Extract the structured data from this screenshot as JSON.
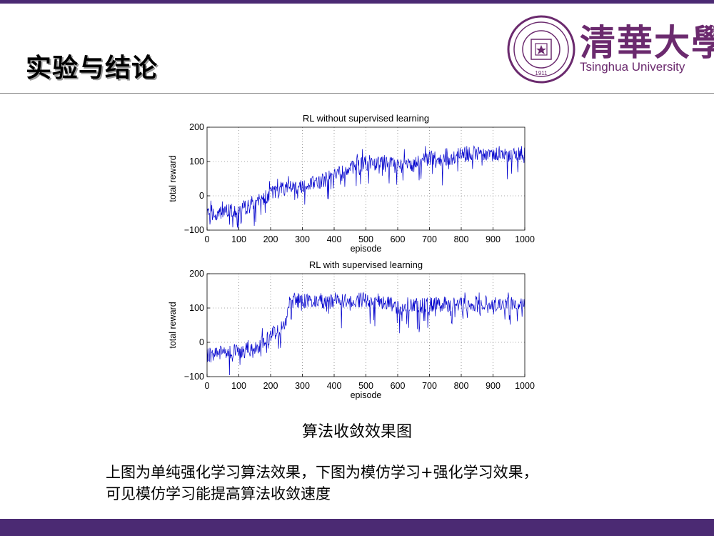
{
  "slide": {
    "title": "实验与结论",
    "accent_color": "#4b2a73",
    "caption": "算法收敛效果图",
    "body_lines": [
      "上图为单纯强化学习算法效果，下图为模仿学习+强化学习效果，",
      "可见模仿学习能提高算法收敛速度"
    ]
  },
  "logo": {
    "name_cn": "清華大學",
    "name_en": "Tsinghua University",
    "seal_year": "1911",
    "color": "#6b2a6e"
  },
  "chart_data": [
    {
      "type": "line",
      "title": "RL without supervised learning",
      "xlabel": "episode",
      "ylabel": "total reward",
      "xlim": [
        0,
        1000
      ],
      "ylim": [
        -100,
        200
      ],
      "xticks": [
        0,
        100,
        200,
        300,
        400,
        500,
        600,
        700,
        800,
        900,
        1000
      ],
      "yticks": [
        -100,
        0,
        100,
        200
      ],
      "grid": true,
      "line_color": "#0000cc",
      "trend": {
        "x": [
          0,
          50,
          100,
          150,
          200,
          250,
          300,
          350,
          400,
          450,
          500,
          550,
          600,
          650,
          700,
          750,
          800,
          850,
          900,
          950,
          1000
        ],
        "y": [
          -60,
          -45,
          -40,
          -25,
          5,
          25,
          30,
          40,
          60,
          80,
          95,
          100,
          85,
          90,
          110,
          105,
          120,
          122,
          122,
          120,
          118
        ]
      }
    },
    {
      "type": "line",
      "title": "RL with supervised learning",
      "xlabel": "episode",
      "ylabel": "total reward",
      "xlim": [
        0,
        1000
      ],
      "ylim": [
        -100,
        200
      ],
      "xticks": [
        0,
        100,
        200,
        300,
        400,
        500,
        600,
        700,
        800,
        900,
        1000
      ],
      "yticks": [
        -100,
        0,
        100,
        200
      ],
      "grid": true,
      "line_color": "#0000cc",
      "trend": {
        "x": [
          0,
          50,
          100,
          150,
          200,
          230,
          250,
          260,
          300,
          400,
          500,
          550,
          600,
          650,
          700,
          800,
          900,
          1000
        ],
        "y": [
          -40,
          -30,
          -25,
          -20,
          20,
          40,
          70,
          120,
          122,
          120,
          125,
          120,
          100,
          105,
          110,
          112,
          115,
          115
        ]
      }
    }
  ]
}
